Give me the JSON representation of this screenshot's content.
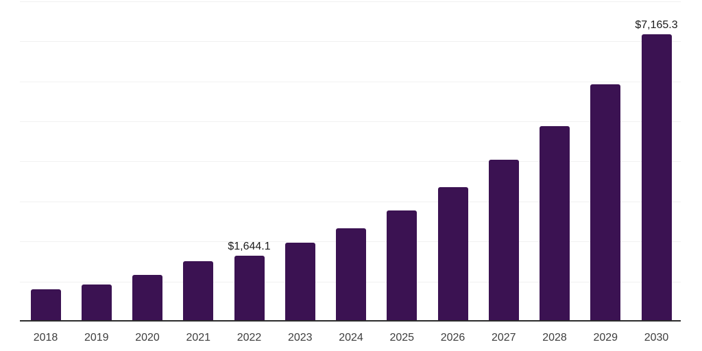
{
  "chart_data": {
    "type": "bar",
    "title": "",
    "xlabel": "",
    "ylabel": "",
    "categories": [
      "2018",
      "2019",
      "2020",
      "2021",
      "2022",
      "2023",
      "2024",
      "2025",
      "2026",
      "2027",
      "2028",
      "2029",
      "2030"
    ],
    "values": [
      800,
      930,
      1160,
      1500,
      1644.1,
      1960,
      2320,
      2780,
      3350,
      4040,
      4880,
      5920,
      7165.3
    ],
    "value_labels": [
      "",
      "",
      "",
      "",
      "$1,644.1",
      "",
      "",
      "",
      "",
      "",
      "",
      "",
      "$7,165.3"
    ],
    "ylim": [
      0,
      8000
    ],
    "grid_step": 1000,
    "grid": "horizontal-only",
    "y_axis_tick_labels_visible": false,
    "legend": "none"
  },
  "colors": {
    "background": "#ffffff",
    "bar": "#3b1252",
    "axis_line": "#2b2b2b",
    "gridline": "#f1f1f1",
    "value_label": "#1a1a1a",
    "tick_label": "#3d3d3d"
  }
}
